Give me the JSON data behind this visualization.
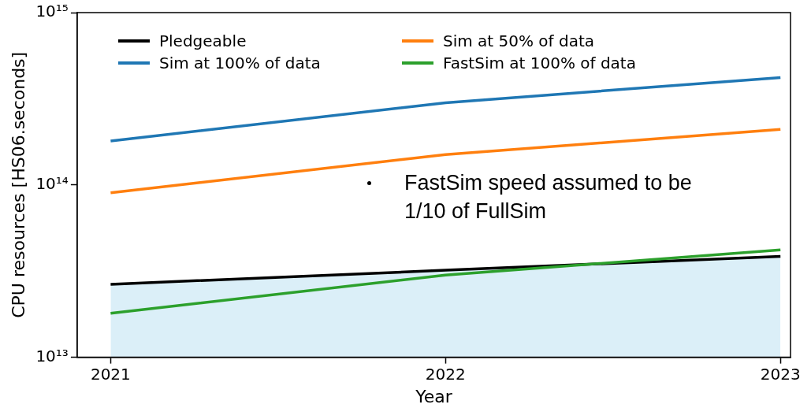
{
  "chart_data": {
    "type": "line",
    "xlabel": "Year",
    "ylabel": "CPU resources [HS06.seconds]",
    "x": [
      2021,
      2022,
      2023
    ],
    "series": [
      {
        "name": "Pledgeable",
        "color": "#000000",
        "type": "area",
        "values": [
          26500000000000.0,
          32000000000000.0,
          38500000000000.0
        ]
      },
      {
        "name": "Sim at 50% of data",
        "color": "#ff7f0e",
        "values": [
          90000000000000.0,
          150000000000000.0,
          210000000000000.0
        ]
      },
      {
        "name": "Sim at 100% of data",
        "color": "#1f77b4",
        "values": [
          180000000000000.0,
          300000000000000.0,
          420000000000000.0
        ]
      },
      {
        "name": "FastSim at 100% of data",
        "color": "#2ca02c",
        "values": [
          18000000000000.0,
          30000000000000.0,
          42000000000000.0
        ]
      }
    ],
    "xlim": [
      2020.9,
      2023.03
    ],
    "xticks": [
      2021,
      2022,
      2023
    ],
    "ylim": [
      10000000000000.0,
      1000000000000000.0
    ],
    "yticks": [
      {
        "value": 10000000000000.0,
        "label": "10¹³"
      },
      {
        "value": 100000000000000.0,
        "label": "10¹⁴"
      },
      {
        "value": 1000000000000000.0,
        "label": "10¹⁵"
      }
    ],
    "log": "y",
    "grid": false,
    "legend": "top",
    "marker": "none",
    "line_style": "solid",
    "annotations": [
      "FastSim speed assumed to be 1/10 of FullSim"
    ]
  }
}
